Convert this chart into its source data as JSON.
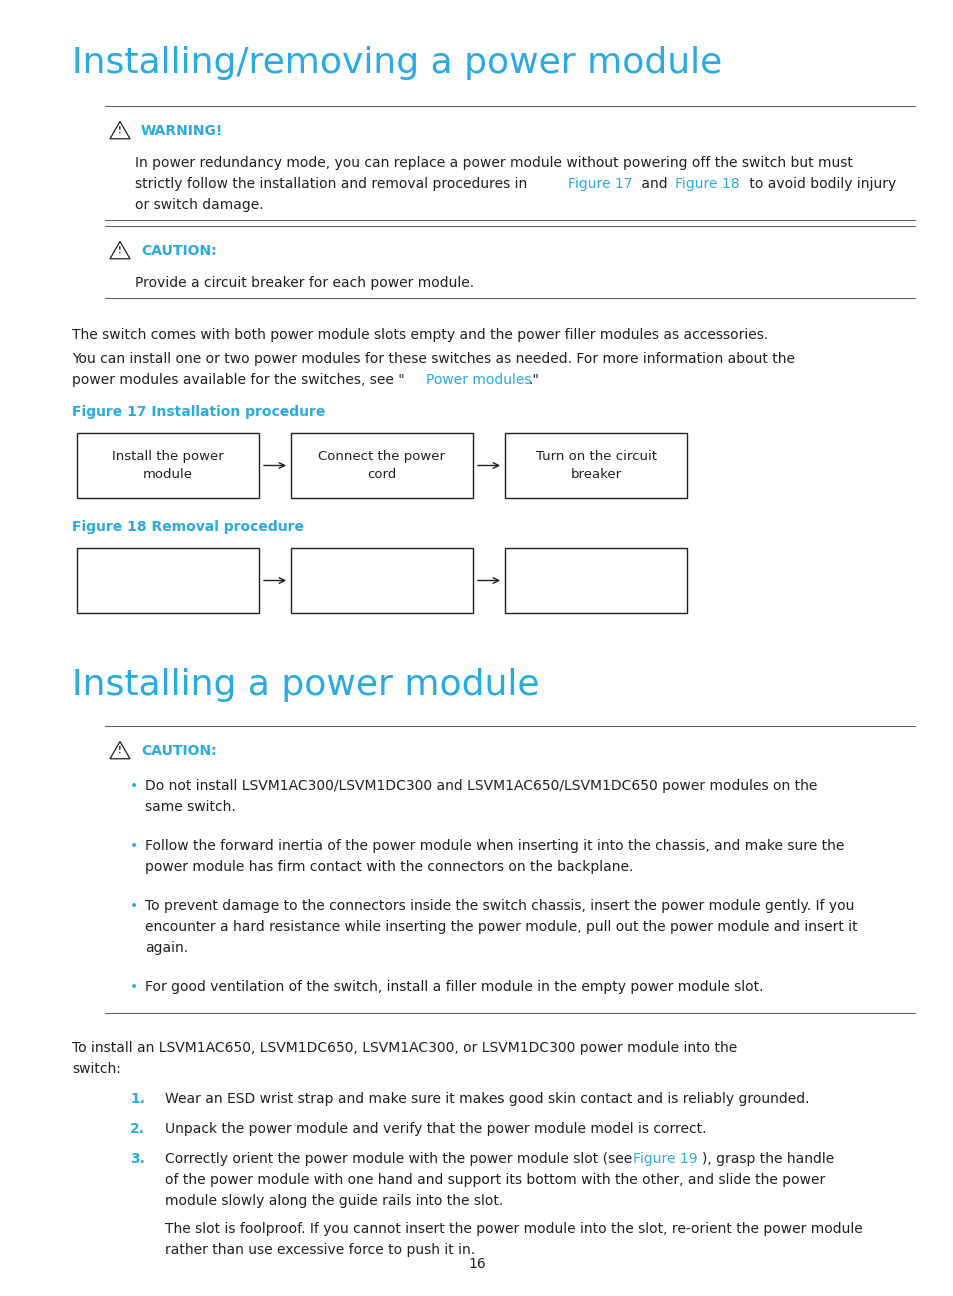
{
  "page_bg": "#ffffff",
  "title1": "Installing/removing a power module",
  "title2": "Installing a power module",
  "title_color": "#29abe2",
  "title_fontsize": 26,
  "body_fontsize": 10,
  "body_color": "#231f20",
  "warning_color": "#29abe2",
  "link_color": "#29abe2",
  "fig17_title": "Figure 17 Installation procedure",
  "fig18_title": "Figure 18 Removal procedure",
  "fig17_boxes": [
    "Install the power\nmodule",
    "Connect the power\ncord",
    "Turn on the circuit\nbreaker"
  ],
  "fig18_boxes": [
    "",
    "",
    ""
  ],
  "warning_label": "WARNING!",
  "caution_label": "CAUTION:",
  "caution_label2": "CAUTION:",
  "caution_text1": "Provide a circuit breaker for each power module.",
  "body_text1": "The switch comes with both power module slots empty and the power filler modules as accessories.",
  "caution_bullets": [
    "Do not install LSVM1AC300/LSVM1DC300 and LSVM1AC650/LSVM1DC650 power modules on the\nsame switch.",
    "Follow the forward inertia of the power module when inserting it into the chassis, and make sure the\npower module has firm contact with the connectors on the backplane.",
    "To prevent damage to the connectors inside the switch chassis, insert the power module gently. If you\nencounter a hard resistance while inserting the power module, pull out the power module and insert it\nagain.",
    "For good ventilation of the switch, install a filler module in the empty power module slot."
  ],
  "page_num": "16"
}
